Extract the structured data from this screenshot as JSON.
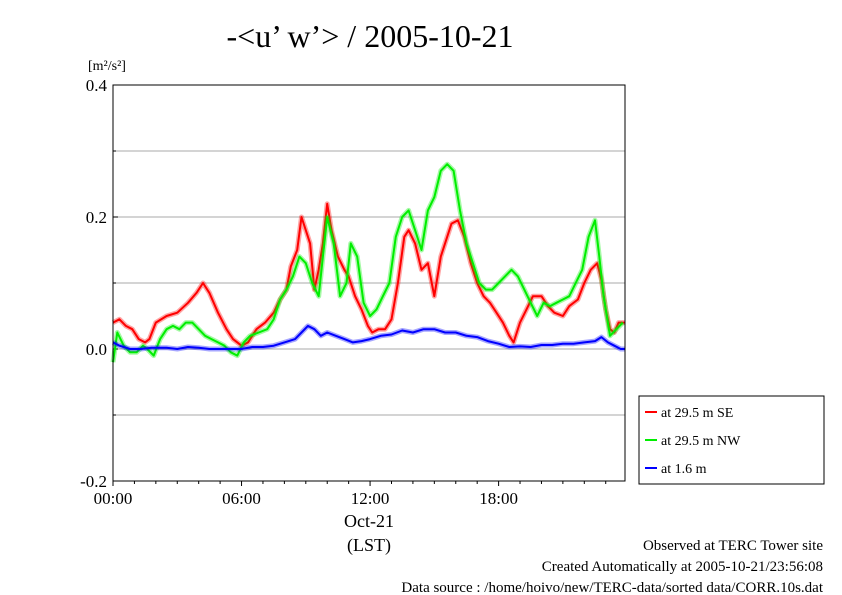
{
  "chart_data": {
    "type": "line",
    "title": "-<u’ w’> / 2005-10-21",
    "y_unit": "[m²/s²]",
    "ylim": [
      -0.2,
      0.4
    ],
    "yticks": [
      "0.4",
      "0.2",
      "0.0",
      "-0.2"
    ],
    "xlim": [
      0,
      23.9
    ],
    "xticks": [
      "00:00",
      "06:00",
      "12:00",
      "18:00"
    ],
    "x_date_label": "Oct-21",
    "x_axis_label": "(LST)",
    "grid": true,
    "legend_position": "right-bottom",
    "series": [
      {
        "name": "at 29.5 m SE",
        "color": "#ff0000",
        "x": [
          0.0,
          0.3,
          0.6,
          0.9,
          1.2,
          1.5,
          1.7,
          2.0,
          2.5,
          3.0,
          3.5,
          3.9,
          4.2,
          4.5,
          4.9,
          5.3,
          5.6,
          6.0,
          6.3,
          6.7,
          7.1,
          7.5,
          7.8,
          8.1,
          8.3,
          8.6,
          8.8,
          9.0,
          9.2,
          9.4,
          9.6,
          9.8,
          10.0,
          10.2,
          10.5,
          10.8,
          11.0,
          11.3,
          11.6,
          11.9,
          12.1,
          12.4,
          12.7,
          13.0,
          13.3,
          13.6,
          13.8,
          14.1,
          14.4,
          14.7,
          15.0,
          15.3,
          15.6,
          15.8,
          16.1,
          16.4,
          16.7,
          17.0,
          17.3,
          17.6,
          17.9,
          18.2,
          18.5,
          18.7,
          19.0,
          19.3,
          19.6,
          20.0,
          20.3,
          20.6,
          21.0,
          21.3,
          21.7,
          22.0,
          22.3,
          22.6,
          22.8,
          23.0,
          23.2,
          23.4,
          23.6,
          23.9
        ],
        "values": [
          0.04,
          0.045,
          0.035,
          0.03,
          0.015,
          0.01,
          0.015,
          0.04,
          0.05,
          0.055,
          0.07,
          0.085,
          0.1,
          0.085,
          0.055,
          0.03,
          0.015,
          0.005,
          0.01,
          0.03,
          0.04,
          0.055,
          0.075,
          0.09,
          0.125,
          0.15,
          0.2,
          0.18,
          0.16,
          0.09,
          0.12,
          0.16,
          0.22,
          0.18,
          0.14,
          0.12,
          0.11,
          0.08,
          0.06,
          0.035,
          0.025,
          0.03,
          0.03,
          0.045,
          0.1,
          0.17,
          0.18,
          0.16,
          0.12,
          0.13,
          0.08,
          0.14,
          0.17,
          0.19,
          0.195,
          0.17,
          0.13,
          0.1,
          0.08,
          0.07,
          0.055,
          0.04,
          0.02,
          0.01,
          0.04,
          0.06,
          0.08,
          0.08,
          0.065,
          0.055,
          0.05,
          0.065,
          0.075,
          0.1,
          0.12,
          0.13,
          0.105,
          0.06,
          0.03,
          0.025,
          0.04,
          0.04
        ]
      },
      {
        "name": "at 29.5 m NW",
        "color": "#00ee00",
        "x": [
          0.0,
          0.2,
          0.5,
          0.8,
          1.1,
          1.4,
          1.6,
          1.9,
          2.2,
          2.5,
          2.8,
          3.1,
          3.4,
          3.7,
          4.0,
          4.3,
          4.6,
          4.9,
          5.2,
          5.5,
          5.8,
          6.1,
          6.4,
          6.8,
          7.2,
          7.5,
          7.8,
          8.1,
          8.4,
          8.7,
          9.0,
          9.3,
          9.6,
          9.8,
          10.0,
          10.3,
          10.6,
          10.9,
          11.1,
          11.4,
          11.7,
          12.0,
          12.3,
          12.6,
          12.9,
          13.2,
          13.5,
          13.8,
          14.1,
          14.4,
          14.7,
          15.0,
          15.3,
          15.6,
          15.9,
          16.2,
          16.5,
          16.8,
          17.1,
          17.4,
          17.7,
          18.0,
          18.3,
          18.6,
          18.9,
          19.2,
          19.5,
          19.8,
          20.1,
          20.4,
          20.7,
          21.0,
          21.3,
          21.6,
          21.9,
          22.2,
          22.5,
          22.7,
          22.9,
          23.2,
          23.5,
          23.8
        ],
        "values": [
          -0.02,
          0.025,
          0.005,
          -0.005,
          -0.005,
          0.005,
          0.0,
          -0.01,
          0.015,
          0.03,
          0.035,
          0.03,
          0.04,
          0.04,
          0.03,
          0.02,
          0.015,
          0.01,
          0.005,
          -0.005,
          -0.01,
          0.01,
          0.02,
          0.025,
          0.03,
          0.045,
          0.075,
          0.09,
          0.11,
          0.14,
          0.13,
          0.1,
          0.08,
          0.14,
          0.2,
          0.16,
          0.08,
          0.1,
          0.16,
          0.14,
          0.07,
          0.05,
          0.06,
          0.08,
          0.1,
          0.17,
          0.2,
          0.21,
          0.18,
          0.15,
          0.21,
          0.23,
          0.27,
          0.28,
          0.27,
          0.21,
          0.16,
          0.13,
          0.1,
          0.09,
          0.09,
          0.1,
          0.11,
          0.12,
          0.11,
          0.09,
          0.07,
          0.05,
          0.07,
          0.065,
          0.07,
          0.075,
          0.08,
          0.1,
          0.12,
          0.17,
          0.195,
          0.14,
          0.08,
          0.02,
          0.03,
          0.04
        ]
      },
      {
        "name": "at 1.6 m",
        "color": "#0000ff",
        "x": [
          0.0,
          0.3,
          0.8,
          1.3,
          1.8,
          2.5,
          3.0,
          3.5,
          4.0,
          4.5,
          5.0,
          5.5,
          6.0,
          6.5,
          7.0,
          7.5,
          8.0,
          8.5,
          8.8,
          9.1,
          9.4,
          9.7,
          10.0,
          10.4,
          10.8,
          11.2,
          11.6,
          12.0,
          12.5,
          13.0,
          13.5,
          14.0,
          14.5,
          15.0,
          15.5,
          16.0,
          16.5,
          17.0,
          17.5,
          18.0,
          18.5,
          19.0,
          19.5,
          20.0,
          20.5,
          21.0,
          21.5,
          22.0,
          22.5,
          22.8,
          23.1,
          23.4,
          23.7,
          23.9
        ],
        "values": [
          0.01,
          0.005,
          0.0,
          0.0,
          0.002,
          0.002,
          0.0,
          0.003,
          0.002,
          0.0,
          0.0,
          0.0,
          0.0,
          0.003,
          0.003,
          0.005,
          0.01,
          0.015,
          0.025,
          0.035,
          0.03,
          0.02,
          0.025,
          0.02,
          0.015,
          0.01,
          0.012,
          0.015,
          0.02,
          0.022,
          0.028,
          0.025,
          0.03,
          0.03,
          0.025,
          0.025,
          0.02,
          0.018,
          0.012,
          0.008,
          0.003,
          0.004,
          0.003,
          0.006,
          0.006,
          0.008,
          0.008,
          0.01,
          0.012,
          0.018,
          0.01,
          0.005,
          0.0,
          0.0
        ]
      }
    ]
  },
  "footer": {
    "line1": "Observed at TERC Tower site",
    "line2": "Created Automatically at 2005-10-21/23:56:08",
    "line3": "Data source : /home/hoivo/new/TERC-data/sorted  data/CORR.10s.dat"
  }
}
